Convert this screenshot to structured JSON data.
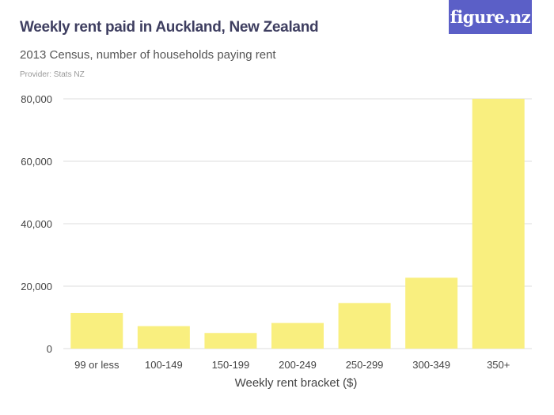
{
  "header": {
    "title": "Weekly rent paid in Auckland, New Zealand",
    "subtitle": "2013 Census, number of households paying rent",
    "provider": "Provider: Stats NZ",
    "logo_text": "figure.nz"
  },
  "colors": {
    "bar": "#f9ef7f",
    "grid": "#dddddd",
    "logo_bg": "#5b5fc7"
  },
  "chart_data": {
    "type": "bar",
    "title": "Weekly rent paid in Auckland, New Zealand",
    "subtitle": "2013 Census, number of households paying rent",
    "xlabel": "Weekly rent bracket ($)",
    "ylabel": "",
    "categories": [
      "99 or less",
      "100-149",
      "150-199",
      "200-249",
      "250-299",
      "300-349",
      "350+"
    ],
    "values": [
      11400,
      7200,
      5000,
      8200,
      14600,
      22700,
      80000
    ],
    "ylim": [
      0,
      80000
    ],
    "yticks": [
      0,
      20000,
      40000,
      60000,
      80000
    ],
    "ytick_labels": [
      "0",
      "20,000",
      "40,000",
      "60,000",
      "80,000"
    ],
    "grid": true
  }
}
